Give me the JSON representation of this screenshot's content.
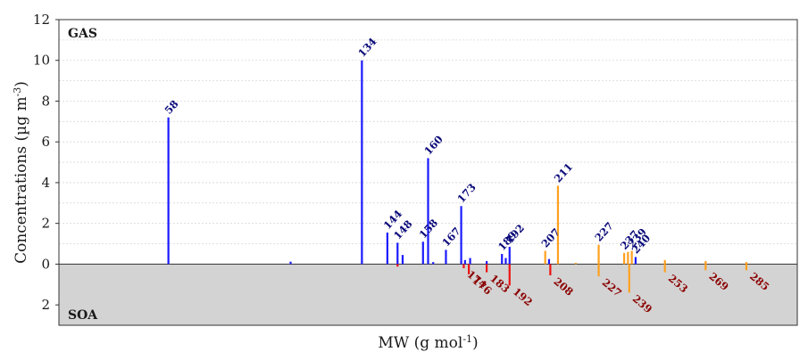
{
  "chart_data": {
    "type": "bar",
    "xlabel": "MW (g mol",
    "xlabel_sup": "-1",
    "xlabel_end": ")",
    "ylabel": "Concentrations (µg m",
    "ylabel_sup": "-3",
    "ylabel_end": ")",
    "xlim": [
      15,
      305
    ],
    "ylim": [
      -3,
      12
    ],
    "yticks": [
      {
        "value": 12,
        "label": "12"
      },
      {
        "value": 10,
        "label": "10"
      },
      {
        "value": 8,
        "label": "8"
      },
      {
        "value": 6,
        "label": "6"
      },
      {
        "value": 4,
        "label": "4"
      },
      {
        "value": 2,
        "label": "2"
      },
      {
        "value": 0,
        "label": "0"
      },
      {
        "value": -2,
        "label": "2"
      }
    ],
    "grid": true,
    "panels": {
      "gas": "GAS",
      "soa": "SOA"
    },
    "colors": {
      "gas_blue": "#1a1aff",
      "gas_label": "#0a0a7a",
      "soa_red": "#ee1111",
      "soa_label": "#8b0000",
      "orange": "#ffa01e",
      "soa_fill": "#d3d3d3",
      "grid": "#d8d8d8"
    },
    "series": [
      {
        "phase": "gas",
        "points": [
          {
            "x": 58,
            "y": 7.2,
            "color": "blue",
            "label": "58"
          },
          {
            "x": 106,
            "y": 0.12,
            "color": "blue"
          },
          {
            "x": 134,
            "y": 10.0,
            "color": "blue",
            "label": "134"
          },
          {
            "x": 144,
            "y": 1.55,
            "color": "blue",
            "label": "144"
          },
          {
            "x": 148,
            "y": 1.05,
            "color": "blue",
            "label": "148"
          },
          {
            "x": 150,
            "y": 0.45,
            "color": "blue"
          },
          {
            "x": 158,
            "y": 1.1,
            "color": "blue",
            "label": "158"
          },
          {
            "x": 160,
            "y": 5.2,
            "color": "blue",
            "label": "160"
          },
          {
            "x": 162,
            "y": 0.1,
            "color": "blue"
          },
          {
            "x": 167,
            "y": 0.7,
            "color": "blue",
            "label": "167"
          },
          {
            "x": 173,
            "y": 2.85,
            "color": "blue",
            "label": "173"
          },
          {
            "x": 174.5,
            "y": 0.2,
            "color": "blue"
          },
          {
            "x": 176.5,
            "y": 0.3,
            "color": "blue"
          },
          {
            "x": 183,
            "y": 0.15,
            "color": "blue"
          },
          {
            "x": 189,
            "y": 0.5,
            "color": "blue",
            "label": "189"
          },
          {
            "x": 190.5,
            "y": 0.3,
            "color": "blue"
          },
          {
            "x": 192,
            "y": 0.85,
            "color": "blue",
            "label": "192"
          },
          {
            "x": 206,
            "y": 0.65,
            "color": "orange",
            "label": "207"
          },
          {
            "x": 207.5,
            "y": 0.25,
            "color": "blue"
          },
          {
            "x": 211,
            "y": 3.85,
            "color": "orange",
            "label": "211"
          },
          {
            "x": 218,
            "y": 0.06,
            "color": "orange"
          },
          {
            "x": 227,
            "y": 0.95,
            "color": "orange",
            "label": "227"
          },
          {
            "x": 237,
            "y": 0.55,
            "color": "orange",
            "label": "237"
          },
          {
            "x": 238.5,
            "y": 0.6,
            "color": "orange"
          },
          {
            "x": 240,
            "y": 0.65,
            "color": "orange",
            "label": "239"
          },
          {
            "x": 241.5,
            "y": 0.35,
            "color": "blue",
            "label": "240"
          },
          {
            "x": 253,
            "y": 0.2,
            "color": "orange"
          },
          {
            "x": 269,
            "y": 0.15,
            "color": "orange"
          },
          {
            "x": 285,
            "y": 0.1,
            "color": "orange"
          }
        ]
      },
      {
        "phase": "soa",
        "points": [
          {
            "x": 148,
            "y": -0.12,
            "color": "red"
          },
          {
            "x": 174,
            "y": -0.2,
            "color": "red",
            "label": "174"
          },
          {
            "x": 176,
            "y": -0.5,
            "color": "red",
            "label": "176"
          },
          {
            "x": 183,
            "y": -0.4,
            "color": "red",
            "label": "183"
          },
          {
            "x": 192,
            "y": -1.05,
            "color": "red",
            "label": "192"
          },
          {
            "x": 208,
            "y": -0.55,
            "color": "red",
            "label": "208"
          },
          {
            "x": 227,
            "y": -0.6,
            "color": "orange",
            "label": "227"
          },
          {
            "x": 239,
            "y": -1.4,
            "color": "orange",
            "label": "239"
          },
          {
            "x": 253,
            "y": -0.4,
            "color": "orange",
            "label": "253"
          },
          {
            "x": 269,
            "y": -0.3,
            "color": "orange",
            "label": "269"
          },
          {
            "x": 285,
            "y": -0.3,
            "color": "orange",
            "label": "285"
          }
        ]
      }
    ]
  }
}
